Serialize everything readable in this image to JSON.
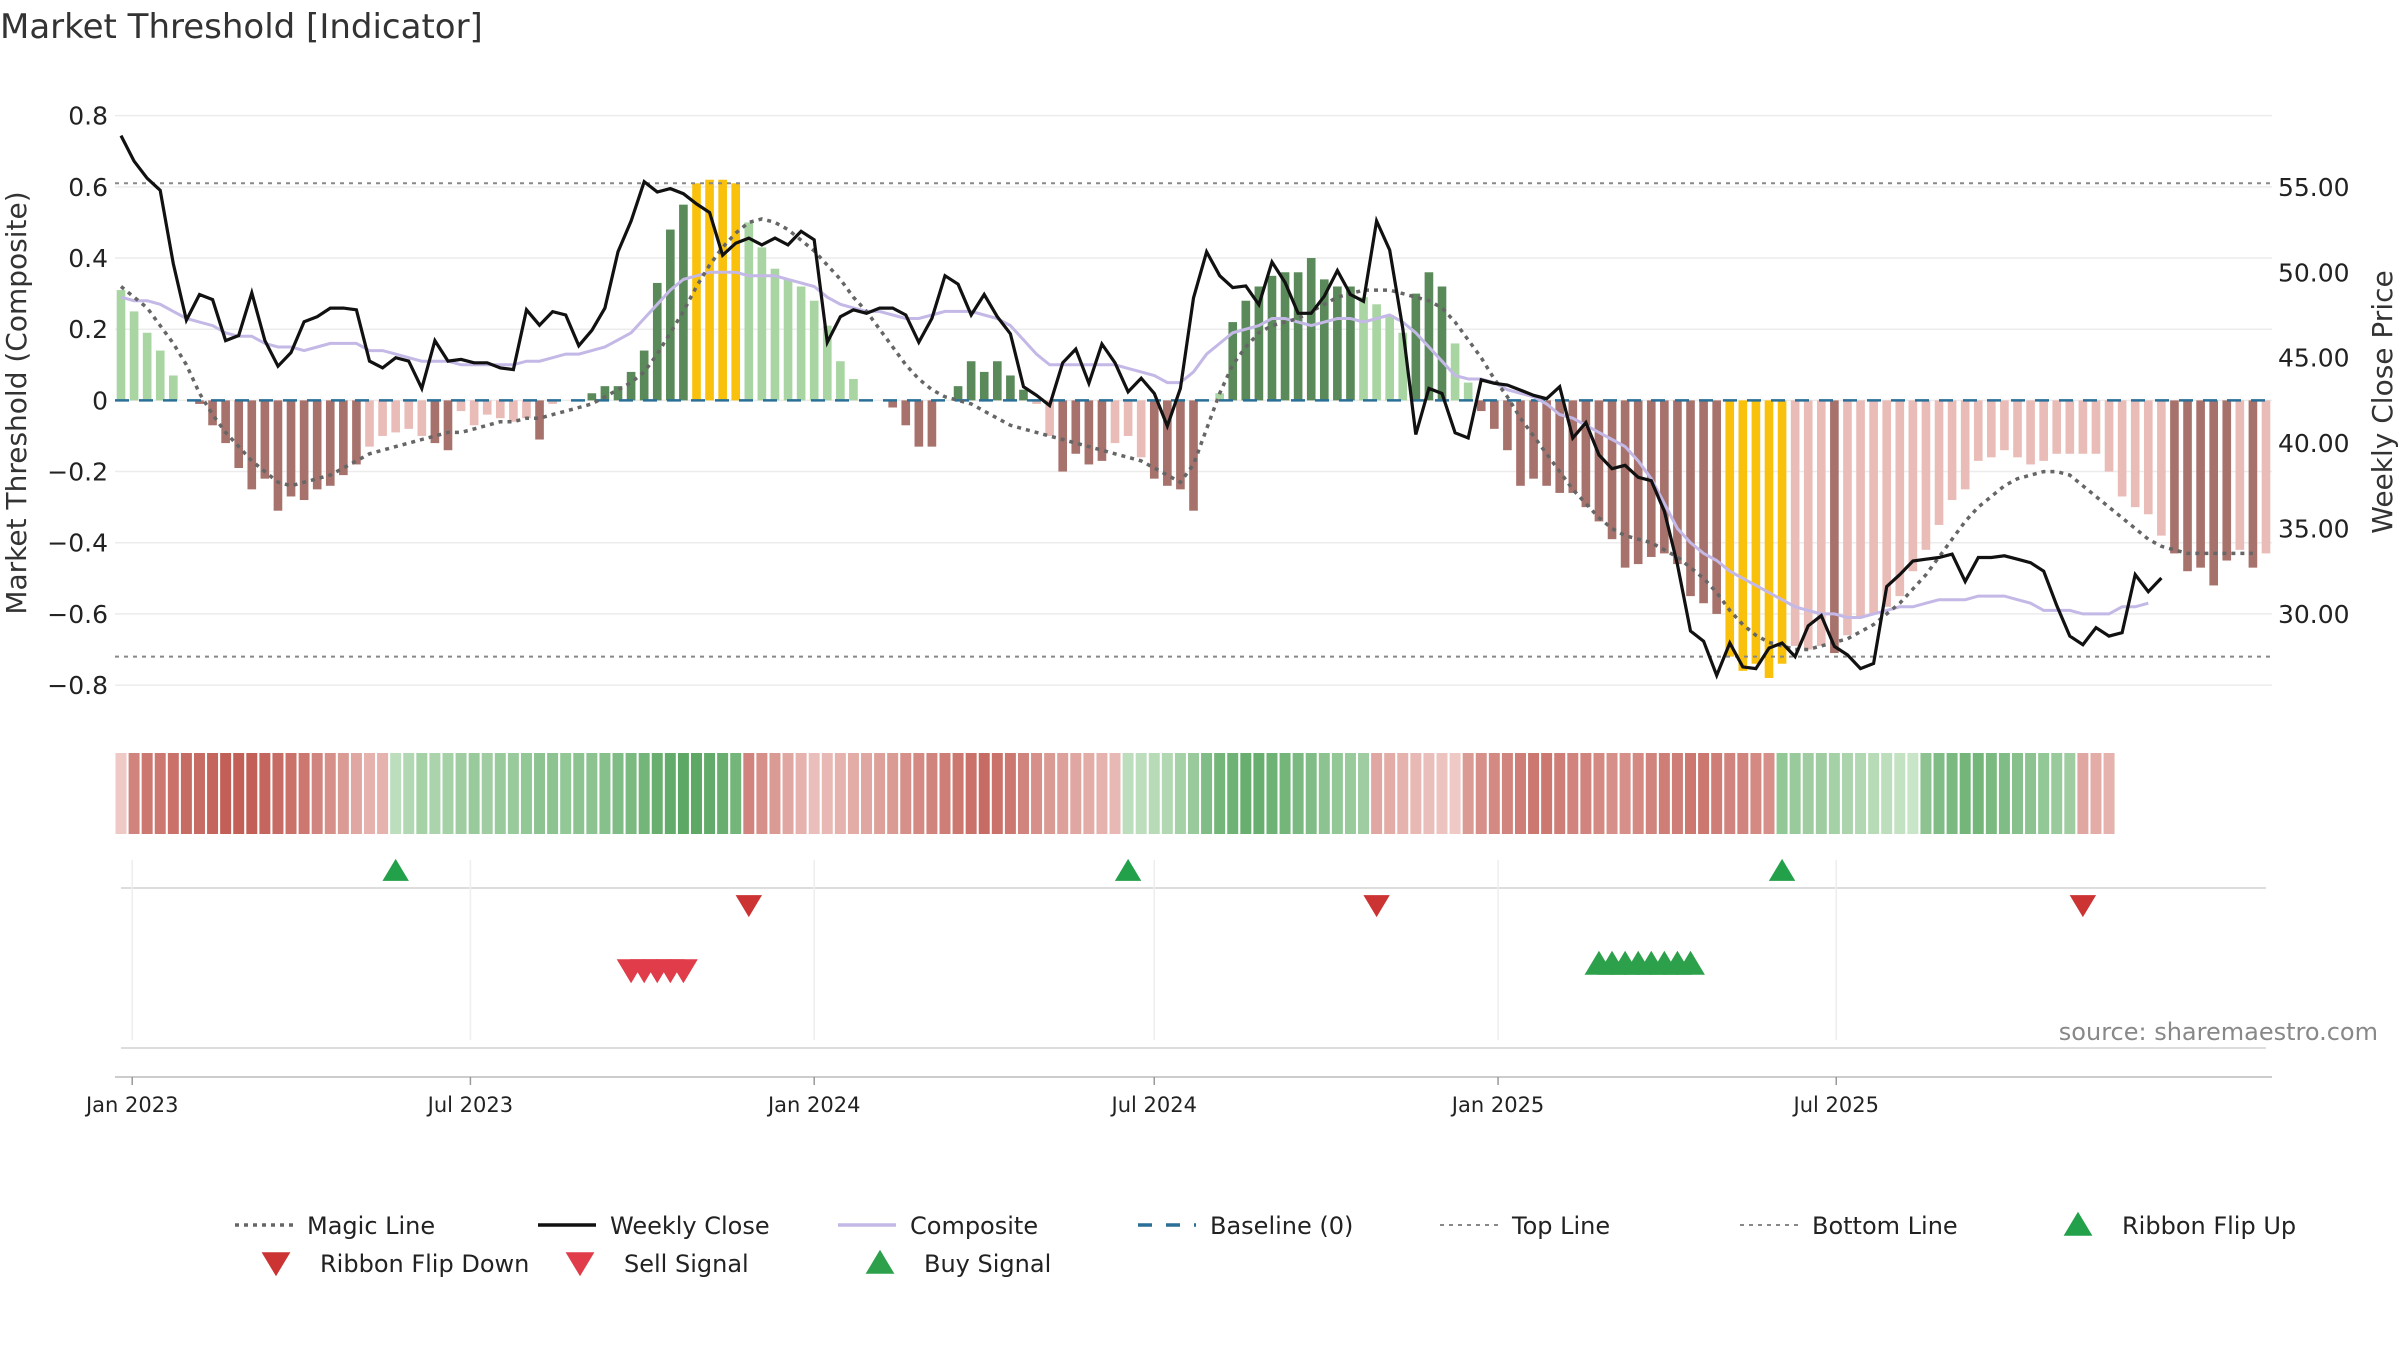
{
  "title": "Market Threshold [Indicator]",
  "source": "source: sharemaestro.com",
  "colors": {
    "strong_green": "#5a8a5a",
    "light_green": "#a8d5a2",
    "strong_red": "#a8726c",
    "light_red": "#e9bcb8",
    "extreme": "#f9c10c",
    "weekly_close": "#111111",
    "composite": "#c3b8e6",
    "magic": "#666666",
    "baseline": "#2a6f97",
    "threshold": "#888888",
    "buy": "#2ca04a",
    "sell": "#e03c4a",
    "flip_down": "#cc3333",
    "flip_up": "#22a04a"
  },
  "chart_data": {
    "type": "bar",
    "x_start": "2022-12-26",
    "interval_days": 7,
    "x_tick_labels": [
      "Jan 2023",
      "Jul 2023",
      "Jan 2024",
      "Jul 2024",
      "Jan 2025",
      "Jul 2025"
    ],
    "x_tick_dates": [
      "2023-01-01",
      "2023-07-01",
      "2024-01-01",
      "2024-07-01",
      "2025-01-01",
      "2025-07-01"
    ],
    "y_left": {
      "label": "Market Threshold (Composite)",
      "range": [
        -0.87,
        0.83
      ],
      "ticks": [
        0.8,
        0.6,
        0.4,
        0.2,
        0,
        -0.2,
        -0.4,
        -0.6,
        -0.8
      ],
      "tick_labels": [
        "0.8",
        "0.6",
        "0.4",
        "0.2",
        "0",
        "−0.2",
        "−0.4",
        "−0.6",
        "−0.8"
      ]
    },
    "y_right": {
      "label": "Weekly Close Price",
      "ticks": [
        55,
        50,
        45,
        40,
        35,
        30
      ],
      "tick_labels": [
        "55.00",
        "50.00",
        "45.00",
        "40.00",
        "35.00",
        "30.00"
      ],
      "map": {
        "left_a": 0.6,
        "right_a": 55.0,
        "left_b": -0.6,
        "right_b": 30.0
      }
    },
    "top_line": 0.61,
    "bottom_line": -0.72,
    "bar_values": [
      0.31,
      0.25,
      0.19,
      0.14,
      0.07,
      0,
      -0.01,
      -0.07,
      -0.12,
      -0.19,
      -0.25,
      -0.22,
      -0.31,
      -0.27,
      -0.28,
      -0.25,
      -0.24,
      -0.21,
      -0.18,
      -0.13,
      -0.1,
      -0.09,
      -0.08,
      -0.1,
      -0.12,
      -0.14,
      -0.03,
      -0.07,
      -0.04,
      -0.05,
      -0.06,
      -0.05,
      -0.11,
      -0.01,
      0,
      0,
      0.02,
      0.04,
      0.04,
      0.08,
      0.14,
      0.33,
      0.48,
      0.55,
      0.61,
      0.62,
      0.62,
      0.61,
      0.5,
      0.43,
      0.37,
      0.34,
      0.32,
      0.28,
      0.21,
      0.11,
      0.06,
      0,
      0,
      -0.02,
      -0.07,
      -0.13,
      -0.13,
      0,
      0.04,
      0.11,
      0.08,
      0.11,
      0.07,
      0.03,
      -0.01,
      -0.1,
      -0.2,
      -0.15,
      -0.18,
      -0.17,
      -0.12,
      -0.1,
      -0.16,
      -0.22,
      -0.24,
      -0.25,
      -0.31,
      0,
      0.02,
      0.22,
      0.28,
      0.32,
      0.35,
      0.36,
      0.36,
      0.4,
      0.34,
      0.32,
      0.32,
      0.29,
      0.27,
      0.24,
      0.19,
      0.3,
      0.36,
      0.32,
      0.16,
      0.05,
      -0.03,
      -0.08,
      -0.14,
      -0.24,
      -0.22,
      -0.24,
      -0.26,
      -0.26,
      -0.3,
      -0.34,
      -0.39,
      -0.47,
      -0.46,
      -0.44,
      -0.43,
      -0.46,
      -0.55,
      -0.57,
      -0.6,
      -0.72,
      -0.76,
      -0.74,
      -0.78,
      -0.74,
      -0.69,
      -0.7,
      -0.69,
      -0.71,
      -0.66,
      -0.61,
      -0.6,
      -0.58,
      -0.55,
      -0.48,
      -0.42,
      -0.35,
      -0.28,
      -0.25,
      -0.17,
      -0.16,
      -0.14,
      -0.16,
      -0.18,
      -0.17,
      -0.15,
      -0.15,
      -0.15,
      -0.15,
      -0.2,
      -0.27,
      -0.3,
      -0.32,
      -0.38,
      -0.43,
      -0.48,
      -0.47,
      -0.52,
      -0.45,
      -0.42,
      -0.47,
      -0.43
    ],
    "bar_classes": [],
    "series": [
      {
        "name": "Magic Line",
        "style": "dotted",
        "values": [
          0.32,
          0.29,
          0.26,
          0.21,
          0.16,
          0.1,
          0.02,
          -0.04,
          -0.09,
          -0.13,
          -0.17,
          -0.2,
          -0.23,
          -0.24,
          -0.23,
          -0.22,
          -0.21,
          -0.19,
          -0.17,
          -0.15,
          -0.14,
          -0.13,
          -0.12,
          -0.11,
          -0.1,
          -0.09,
          -0.09,
          -0.08,
          -0.07,
          -0.06,
          -0.06,
          -0.05,
          -0.05,
          -0.04,
          -0.03,
          -0.02,
          -0.01,
          0.01,
          0.03,
          0.05,
          0.08,
          0.13,
          0.19,
          0.25,
          0.32,
          0.38,
          0.43,
          0.47,
          0.5,
          0.51,
          0.5,
          0.48,
          0.45,
          0.42,
          0.38,
          0.34,
          0.29,
          0.25,
          0.2,
          0.15,
          0.1,
          0.06,
          0.03,
          0.01,
          0,
          -0.01,
          -0.03,
          -0.05,
          -0.07,
          -0.08,
          -0.09,
          -0.1,
          -0.11,
          -0.12,
          -0.13,
          -0.14,
          -0.15,
          -0.16,
          -0.17,
          -0.19,
          -0.21,
          -0.23,
          -0.18,
          -0.08,
          0.02,
          0.1,
          0.15,
          0.19,
          0.21,
          0.22,
          0.23,
          0.25,
          0.27,
          0.29,
          0.3,
          0.31,
          0.31,
          0.31,
          0.3,
          0.29,
          0.28,
          0.26,
          0.22,
          0.17,
          0.12,
          0.06,
          0.01,
          -0.05,
          -0.1,
          -0.15,
          -0.2,
          -0.25,
          -0.29,
          -0.33,
          -0.36,
          -0.38,
          -0.39,
          -0.4,
          -0.42,
          -0.44,
          -0.47,
          -0.5,
          -0.54,
          -0.59,
          -0.63,
          -0.66,
          -0.68,
          -0.69,
          -0.7,
          -0.7,
          -0.69,
          -0.68,
          -0.67,
          -0.65,
          -0.63,
          -0.6,
          -0.57,
          -0.53,
          -0.49,
          -0.44,
          -0.39,
          -0.34,
          -0.3,
          -0.27,
          -0.24,
          -0.22,
          -0.21,
          -0.2,
          -0.2,
          -0.21,
          -0.24,
          -0.27,
          -0.3,
          -0.33,
          -0.36,
          -0.39,
          -0.41,
          -0.42,
          -0.43,
          -0.43,
          -0.43,
          -0.43,
          -0.43,
          -0.43
        ]
      },
      {
        "name": "Weekly Close",
        "axis": "right",
        "values": [
          58.0,
          56.5,
          55.5,
          54.8,
          50.5,
          47.2,
          48.7,
          48.4,
          46.0,
          46.3,
          48.8,
          46.0,
          44.5,
          45.3,
          47.1,
          47.4,
          47.9,
          47.9,
          47.8,
          44.8,
          44.4,
          45.0,
          44.8,
          43.2,
          46.0,
          44.8,
          44.9,
          44.7,
          44.7,
          44.4,
          44.3,
          47.8,
          46.9,
          47.7,
          47.5,
          45.7,
          46.6,
          47.9,
          51.2,
          53.0,
          55.3,
          54.7,
          54.9,
          54.6,
          54.0,
          53.5,
          51.0,
          51.7,
          52.0,
          51.6,
          52.0,
          51.6,
          52.4,
          51.9,
          45.9,
          47.4,
          47.8,
          47.6,
          47.9,
          47.9,
          47.5,
          45.9,
          47.3,
          49.8,
          49.3,
          47.5,
          48.7,
          47.4,
          46.4,
          43.3,
          42.8,
          42.2,
          44.7,
          45.5,
          43.5,
          45.8,
          44.7,
          43.0,
          43.8,
          42.9,
          41.0,
          43.2,
          48.5,
          51.2,
          49.8,
          49.1,
          49.2,
          48.1,
          50.6,
          49.4,
          47.6,
          47.6,
          48.6,
          50.1,
          48.7,
          48.3,
          53.0,
          51.3,
          46.7,
          40.5,
          43.2,
          42.9,
          40.6,
          40.3,
          43.7,
          43.5,
          43.4,
          43.1,
          42.8,
          42.6,
          43.3,
          40.3,
          41.2,
          39.3,
          38.5,
          38.7,
          38.0,
          37.8,
          36.0,
          32.9,
          29.0,
          28.4,
          26.4,
          28.3,
          26.9,
          26.8,
          28.0,
          28.3,
          27.5,
          29.3,
          29.9,
          28.1,
          27.6,
          26.8,
          27.1,
          31.6,
          32.3,
          33.1,
          33.2,
          33.3,
          33.5,
          31.9,
          33.3,
          33.3,
          33.4,
          33.2,
          33.0,
          32.5,
          30.5,
          28.7,
          28.2,
          29.2,
          28.7,
          28.9,
          32.3,
          31.3,
          32.1
        ]
      },
      {
        "name": "Composite",
        "values": [
          0.29,
          0.28,
          0.28,
          0.27,
          0.25,
          0.23,
          0.22,
          0.21,
          0.19,
          0.18,
          0.18,
          0.16,
          0.15,
          0.15,
          0.14,
          0.15,
          0.16,
          0.16,
          0.16,
          0.14,
          0.14,
          0.13,
          0.12,
          0.11,
          0.11,
          0.11,
          0.1,
          0.1,
          0.1,
          0.1,
          0.1,
          0.11,
          0.11,
          0.12,
          0.13,
          0.13,
          0.14,
          0.15,
          0.17,
          0.19,
          0.23,
          0.27,
          0.31,
          0.34,
          0.35,
          0.36,
          0.36,
          0.36,
          0.35,
          0.35,
          0.35,
          0.34,
          0.33,
          0.32,
          0.29,
          0.27,
          0.26,
          0.25,
          0.25,
          0.24,
          0.23,
          0.23,
          0.24,
          0.25,
          0.25,
          0.25,
          0.24,
          0.23,
          0.21,
          0.17,
          0.13,
          0.1,
          0.1,
          0.1,
          0.1,
          0.1,
          0.1,
          0.09,
          0.08,
          0.07,
          0.05,
          0.05,
          0.08,
          0.13,
          0.16,
          0.19,
          0.2,
          0.21,
          0.23,
          0.23,
          0.22,
          0.21,
          0.22,
          0.23,
          0.23,
          0.22,
          0.23,
          0.24,
          0.22,
          0.19,
          0.15,
          0.11,
          0.07,
          0.06,
          0.06,
          0.05,
          0.03,
          0.02,
          0.01,
          -0.01,
          -0.04,
          -0.05,
          -0.07,
          -0.09,
          -0.11,
          -0.13,
          -0.17,
          -0.22,
          -0.29,
          -0.36,
          -0.4,
          -0.43,
          -0.45,
          -0.48,
          -0.5,
          -0.52,
          -0.54,
          -0.56,
          -0.58,
          -0.59,
          -0.6,
          -0.6,
          -0.61,
          -0.61,
          -0.6,
          -0.59,
          -0.58,
          -0.58,
          -0.57,
          -0.56,
          -0.56,
          -0.56,
          -0.55,
          -0.55,
          -0.55,
          -0.56,
          -0.57,
          -0.59,
          -0.59,
          -0.59,
          -0.6,
          -0.6,
          -0.6,
          -0.58,
          -0.58,
          -0.57
        ]
      },
      {
        "name": "Baseline (0)",
        "style": "dashed",
        "value": 0
      },
      {
        "name": "Top Line",
        "style": "dotted",
        "value": 0.61
      },
      {
        "name": "Bottom Line",
        "style": "dotted",
        "value": -0.72
      }
    ],
    "ribbon": {
      "strength_levels": [
        0.1,
        0.7,
        0.8,
        0.8,
        0.85,
        0.9,
        0.9,
        0.95,
        1.0,
        1.0,
        1.0,
        0.95,
        0.9,
        0.85,
        0.8,
        0.7,
        0.6,
        0.5,
        0.4,
        0.3,
        0.3,
        0.2,
        0.3,
        0.4,
        0.35,
        0.4,
        0.45,
        0.5,
        0.45,
        0.5,
        0.5,
        0.55,
        0.6,
        0.6,
        0.55,
        0.6,
        0.6,
        0.65,
        0.7,
        0.75,
        0.8,
        0.9,
        0.95,
        1.0,
        1.0,
        0.95,
        0.9,
        0.8,
        0.7,
        0.6,
        0.5,
        0.4,
        0.3,
        0.2,
        0.25,
        0.3,
        0.35,
        0.4,
        0.45,
        0.5,
        0.6,
        0.65,
        0.7,
        0.75,
        0.8,
        0.85,
        0.9,
        0.85,
        0.8,
        0.7,
        0.6,
        0.5,
        0.45,
        0.4,
        0.35,
        0.3,
        0.25,
        0.2,
        0.2,
        0.25,
        0.3,
        0.4,
        0.5,
        0.7,
        0.8,
        0.85,
        0.9,
        0.9,
        0.85,
        0.8,
        0.75,
        0.7,
        0.6,
        0.55,
        0.5,
        0.45,
        0.4,
        0.35,
        0.3,
        0.25,
        0.2,
        0.15,
        0.1,
        0.5,
        0.6,
        0.65,
        0.7,
        0.75,
        0.8,
        0.8,
        0.75,
        0.7,
        0.7,
        0.65,
        0.6,
        0.6,
        0.65,
        0.7,
        0.75,
        0.75,
        0.8,
        0.8,
        0.75,
        0.7,
        0.7,
        0.65,
        0.6,
        0.55,
        0.5,
        0.45,
        0.45,
        0.4,
        0.35,
        0.3,
        0.25,
        0.2,
        0.15,
        0.1,
        0.6,
        0.7,
        0.75,
        0.8,
        0.8,
        0.75,
        0.7,
        0.65,
        0.6,
        0.55,
        0.5,
        0.45,
        0.4,
        0.35,
        0.3,
        0.25,
        0.2,
        0.15,
        0.1,
        0.1,
        0.15,
        0.2,
        0.2,
        0.15
      ],
      "segments": [
        {
          "start": 0,
          "end": 21,
          "regime": "red"
        },
        {
          "start": 21,
          "end": 48,
          "regime": "green"
        },
        {
          "start": 48,
          "end": 77,
          "regime": "red"
        },
        {
          "start": 77,
          "end": 96,
          "regime": "green"
        },
        {
          "start": 96,
          "end": 127,
          "regime": "red"
        },
        {
          "start": 127,
          "end": 150,
          "regime": "green"
        },
        {
          "start": 150,
          "end": 153,
          "regime": "red"
        }
      ]
    },
    "ribbon_flips": [
      {
        "index": 21,
        "direction": "up"
      },
      {
        "index": 48,
        "direction": "down"
      },
      {
        "index": 77,
        "direction": "up"
      },
      {
        "index": 96,
        "direction": "down"
      },
      {
        "index": 127,
        "direction": "up"
      },
      {
        "index": 150,
        "direction": "down"
      }
    ],
    "sell_signals": [
      39,
      40,
      41,
      42,
      43
    ],
    "buy_signals": [
      113,
      114,
      115,
      116,
      117,
      118,
      119,
      120
    ],
    "legend": {
      "placement": "bottom",
      "entries": [
        "Magic Line",
        "Weekly Close",
        "Composite",
        "Baseline (0)",
        "Top Line",
        "Bottom Line",
        "Ribbon Flip Up",
        "Ribbon Flip Down",
        "Sell Signal",
        "Buy Signal"
      ]
    }
  }
}
